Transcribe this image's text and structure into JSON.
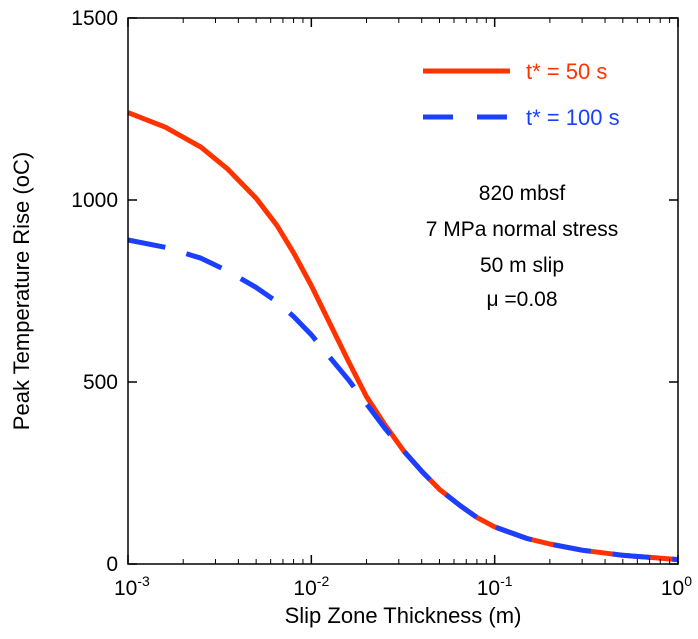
{
  "chart_data": {
    "type": "line",
    "xlabel": "Slip Zone Thickness (m)",
    "ylabel": "Peak Temperature Rise (",
    "ylabel_unit": "oC)",
    "x_scale": "log",
    "xlim": [
      0.001,
      1
    ],
    "ylim": [
      0,
      1500
    ],
    "x_ticks": [
      {
        "value": 0.001,
        "base": "10",
        "exp": "-3"
      },
      {
        "value": 0.01,
        "base": "10",
        "exp": "-2"
      },
      {
        "value": 0.1,
        "base": "10",
        "exp": "-1"
      },
      {
        "value": 1,
        "base": "10",
        "exp": "0"
      }
    ],
    "y_ticks": [
      {
        "value": 0,
        "label": "0"
      },
      {
        "value": 500,
        "label": "500"
      },
      {
        "value": 1000,
        "label": "1000"
      },
      {
        "value": 1500,
        "label": "1500"
      }
    ],
    "grid": false,
    "legend_position": "top-right",
    "series": [
      {
        "name": "t* = 50 s",
        "color": "#ff3300",
        "dash": "solid",
        "x": [
          0.001,
          0.0016,
          0.0025,
          0.0035,
          0.005,
          0.0065,
          0.008,
          0.01,
          0.0125,
          0.016,
          0.02,
          0.025,
          0.032,
          0.04,
          0.05,
          0.065,
          0.08,
          0.1,
          0.15,
          0.2,
          0.3,
          0.5,
          0.75,
          1.0
        ],
        "values": [
          1240,
          1200,
          1145,
          1085,
          1005,
          930,
          855,
          765,
          665,
          555,
          460,
          385,
          310,
          255,
          205,
          160,
          128,
          102,
          70,
          55,
          38,
          24,
          17,
          12
        ]
      },
      {
        "name": "t* = 100 s",
        "color": "#1a3fff",
        "dash": "dashed",
        "x": [
          0.001,
          0.0016,
          0.0025,
          0.0035,
          0.005,
          0.0065,
          0.008,
          0.01,
          0.0125,
          0.016,
          0.02,
          0.025,
          0.032,
          0.04,
          0.05,
          0.065,
          0.08,
          0.1,
          0.15,
          0.2,
          0.3,
          0.5,
          0.75,
          1.0
        ],
        "values": [
          890,
          870,
          840,
          805,
          760,
          720,
          680,
          630,
          570,
          505,
          440,
          375,
          310,
          255,
          205,
          160,
          128,
          102,
          70,
          55,
          38,
          24,
          17,
          12
        ]
      }
    ],
    "annotations": [
      "820 mbsf",
      "7 MPa normal stress",
      "50 m slip",
      "μ =0.08"
    ]
  }
}
